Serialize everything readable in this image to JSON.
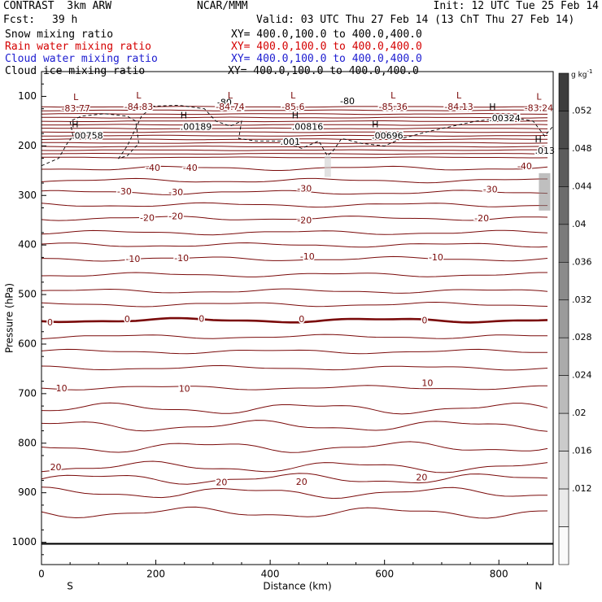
{
  "header": {
    "title_left": "CONTRAST  3km ARW",
    "org": "NCAR/MMM",
    "init": "Init: 12 UTC Tue 25 Feb 14",
    "fcst_label": "Fcst:",
    "fcst_value": "39 h",
    "valid": "Valid: 03 UTC Thu 27 Feb 14 (13 ChT Thu 27 Feb 14)"
  },
  "fields": [
    {
      "name": "Snow mixing ratio",
      "xy": "XY= 400.0,100.0 to 400.0,400.0",
      "color": "#000000"
    },
    {
      "name": "Rain water mixing ratio",
      "xy": "XY= 400.0,100.0 to 400.0,400.0",
      "color": "#d40000"
    },
    {
      "name": "Cloud water mixing ratio",
      "xy": "XY= 400.0,100.0 to 400.0,400.0",
      "color": "#1c1cd0"
    },
    {
      "name": "Cloud ice mixing ratio",
      "xy": "XY= 400.0,100.0 to 400.0,400.0",
      "color": "#000000"
    }
  ],
  "chart_data": {
    "type": "contour",
    "xlabel": "Distance (km)",
    "ylabel": "Pressure (hPa)",
    "x_ticks": [
      0,
      200,
      400,
      600,
      800
    ],
    "xlim": [
      0,
      895
    ],
    "y_ticks": [
      100,
      200,
      300,
      400,
      500,
      600,
      700,
      800,
      900,
      1000
    ],
    "ylim": [
      1045,
      50
    ],
    "y_scale": "linear, pressure decreasing upward",
    "end_labels": {
      "left": "S",
      "right": "N"
    },
    "colorbar": {
      "unit": "g kg",
      "unit_exp": "-1",
      "ticks": [
        ".052",
        ".048",
        ".044",
        ".04",
        ".036",
        ".032",
        ".028",
        ".024",
        ".02",
        ".016",
        ".012"
      ]
    },
    "temperature_labels": [
      {
        "text": "-40",
        "x": 195,
        "p": 245
      },
      {
        "text": "-40",
        "x": 260,
        "p": 245
      },
      {
        "text": "-40",
        "x": 845,
        "p": 242
      },
      {
        "text": "-30",
        "x": 145,
        "p": 293
      },
      {
        "text": "-30",
        "x": 235,
        "p": 295
      },
      {
        "text": "-30",
        "x": 460,
        "p": 287
      },
      {
        "text": "-30",
        "x": 785,
        "p": 289
      },
      {
        "text": "-20",
        "x": 185,
        "p": 346
      },
      {
        "text": "-20",
        "x": 235,
        "p": 343
      },
      {
        "text": "-20",
        "x": 460,
        "p": 351
      },
      {
        "text": "-20",
        "x": 770,
        "p": 347
      },
      {
        "text": "-10",
        "x": 160,
        "p": 429
      },
      {
        "text": "-10",
        "x": 245,
        "p": 428
      },
      {
        "text": "-10",
        "x": 465,
        "p": 424
      },
      {
        "text": "-10",
        "x": 690,
        "p": 426
      },
      {
        "text": "0",
        "x": 15,
        "p": 557
      },
      {
        "text": "0",
        "x": 150,
        "p": 551
      },
      {
        "text": "0",
        "x": 280,
        "p": 550
      },
      {
        "text": "0",
        "x": 455,
        "p": 551
      },
      {
        "text": "0",
        "x": 670,
        "p": 553
      },
      {
        "text": "10",
        "x": 35,
        "p": 690
      },
      {
        "text": "10",
        "x": 250,
        "p": 691
      },
      {
        "text": "10",
        "x": 675,
        "p": 680
      },
      {
        "text": "20",
        "x": 25,
        "p": 850
      },
      {
        "text": "20",
        "x": 315,
        "p": 880
      },
      {
        "text": "20",
        "x": 455,
        "p": 879
      },
      {
        "text": "20",
        "x": 665,
        "p": 870
      }
    ],
    "tropopause_labels": [
      {
        "text": "-80",
        "x": 320,
        "p": 113
      },
      {
        "text": "-80",
        "x": 535,
        "p": 111
      }
    ],
    "low_centers": [
      {
        "text": "L",
        "value": "-83.77",
        "x": 60,
        "p": 114
      },
      {
        "text": "L",
        "value": "-84.83",
        "x": 170,
        "p": 111
      },
      {
        "text": "L",
        "value": "-84.74",
        "x": 330,
        "p": 111
      },
      {
        "text": "L",
        "value": "-85.6",
        "x": 440,
        "p": 111
      },
      {
        "text": "L",
        "value": "-85.36",
        "x": 615,
        "p": 111
      },
      {
        "text": "L",
        "value": "-84.13",
        "x": 730,
        "p": 111
      },
      {
        "text": "L",
        "value": "-83.24",
        "x": 870,
        "p": 113
      }
    ],
    "high_centers": [
      {
        "text": "H",
        "value": ".00758",
        "x": 70,
        "p": 174
      },
      {
        "text": "H",
        "value": ".00189",
        "x": 260,
        "p": 156
      },
      {
        "text": "H",
        "value": ".00816",
        "x": 455,
        "p": 156
      },
      {
        "text": "H",
        "value": ".00696",
        "x": 595,
        "p": 174
      },
      {
        "text": "H",
        "value": ".00324",
        "x": 800,
        "p": 139
      },
      {
        "text": "H",
        "value": ".013",
        "x": 880,
        "p": 204
      }
    ],
    "cloud_ice_contour_label": {
      "text": ".001",
      "x": 435,
      "p": 193
    }
  }
}
